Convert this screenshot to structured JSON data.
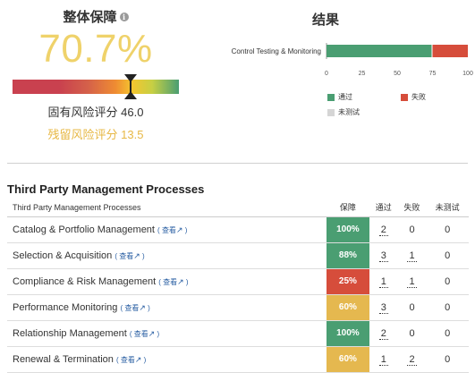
{
  "overall": {
    "title": "整体保障",
    "info_icon": "info-icon",
    "assurance_pct": "70.7%",
    "assurance_level": 0.707,
    "inherent_risk": "固有风险评分 46.0",
    "residual_risk": "残留风险评分 13.5"
  },
  "results": {
    "title": "结果",
    "legend": {
      "passed": "通过",
      "failed": "失败",
      "not_tested": "未测试"
    },
    "colors": {
      "passed": "#4a9e72",
      "failed": "#d64d3b",
      "not_tested": "#d5d5d5"
    }
  },
  "chart_data": {
    "type": "bar",
    "orientation": "horizontal",
    "stacked": true,
    "categories": [
      "Control Testing & Monitoring"
    ],
    "series": [
      {
        "name": "通过",
        "values": [
          75
        ],
        "color": "#4a9e72"
      },
      {
        "name": "失败",
        "values": [
          25
        ],
        "color": "#d64d3b"
      },
      {
        "name": "未测试",
        "values": [
          0
        ],
        "color": "#d5d5d5"
      }
    ],
    "xlim": [
      0,
      100
    ],
    "xticks": [
      "0",
      "25",
      "50",
      "75",
      "100"
    ],
    "legend_placement": "bottom"
  },
  "table": {
    "section_title": "Third Party Management Processes",
    "headers": {
      "name": "Third Party Management Processes",
      "assurance": "保障",
      "passed": "通过",
      "failed": "失败",
      "not_tested": "未测试"
    },
    "view_label": "查看",
    "view_icon": "external-link-icon",
    "rows": [
      {
        "name": "Catalog & Portfolio Management",
        "assurance": "100%",
        "color": "#4a9e72",
        "passed": "2",
        "failed": "0",
        "not_tested": "0"
      },
      {
        "name": "Selection & Acquisition",
        "assurance": "88%",
        "color": "#4a9e72",
        "passed": "3",
        "failed": "1",
        "not_tested": "0"
      },
      {
        "name": "Compliance & Risk Management",
        "assurance": "25%",
        "color": "#d64d3b",
        "passed": "1",
        "failed": "1",
        "not_tested": "0"
      },
      {
        "name": "Performance Monitoring",
        "assurance": "60%",
        "color": "#e5b84f",
        "passed": "3",
        "failed": "0",
        "not_tested": "0"
      },
      {
        "name": "Relationship Management",
        "assurance": "100%",
        "color": "#4a9e72",
        "passed": "2",
        "failed": "0",
        "not_tested": "0"
      },
      {
        "name": "Renewal & Termination",
        "assurance": "60%",
        "color": "#e5b84f",
        "passed": "1",
        "failed": "2",
        "not_tested": "0"
      }
    ]
  }
}
